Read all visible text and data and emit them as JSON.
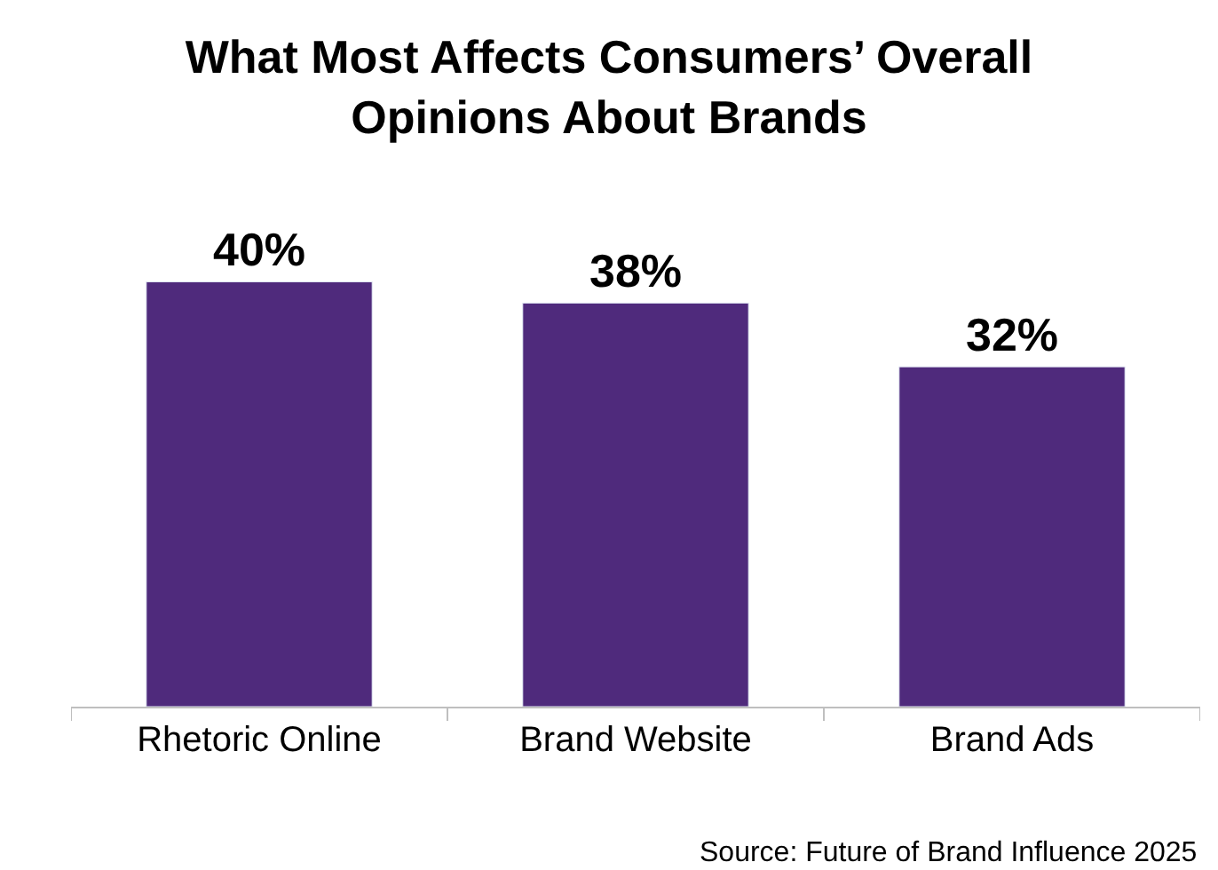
{
  "chart_data": {
    "type": "bar",
    "title": "What Most Affects Consumers’ Overall\nOpinions About Brands",
    "categories": [
      "Rhetoric Online",
      "Brand Website",
      "Brand Ads"
    ],
    "values": [
      40,
      38,
      32
    ],
    "value_labels": [
      "40%",
      "38%",
      "32%"
    ],
    "color": "#4f2a7c",
    "tick_labels": "x",
    "annotations": [
      "Source: Future of Brand Influence 2025"
    ]
  }
}
